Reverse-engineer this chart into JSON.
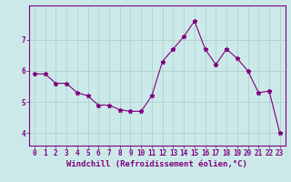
{
  "x": [
    0,
    1,
    2,
    3,
    4,
    5,
    6,
    7,
    8,
    9,
    10,
    11,
    12,
    13,
    14,
    15,
    16,
    17,
    18,
    19,
    20,
    21,
    22,
    23
  ],
  "y": [
    5.9,
    5.9,
    5.6,
    5.6,
    5.3,
    5.2,
    4.9,
    4.9,
    4.75,
    4.7,
    4.7,
    5.2,
    6.3,
    6.7,
    7.1,
    7.6,
    6.7,
    6.2,
    6.7,
    6.4,
    6.0,
    5.3,
    5.35,
    4.0
  ],
  "line_color": "#800080",
  "marker": "*",
  "marker_size": 3.5,
  "bg_color": "#cce9e9",
  "grid_color": "#aacccc",
  "xlabel": "Windchill (Refroidissement éolien,°C)",
  "ylabel": "",
  "ylim": [
    3.6,
    8.1
  ],
  "xlim": [
    -0.5,
    23.5
  ],
  "yticks": [
    4,
    5,
    6,
    7
  ],
  "xticks": [
    0,
    1,
    2,
    3,
    4,
    5,
    6,
    7,
    8,
    9,
    10,
    11,
    12,
    13,
    14,
    15,
    16,
    17,
    18,
    19,
    20,
    21,
    22,
    23
  ],
  "tick_color": "#800080",
  "label_color": "#800080",
  "tick_fontsize": 5.5,
  "xlabel_fontsize": 6.5
}
